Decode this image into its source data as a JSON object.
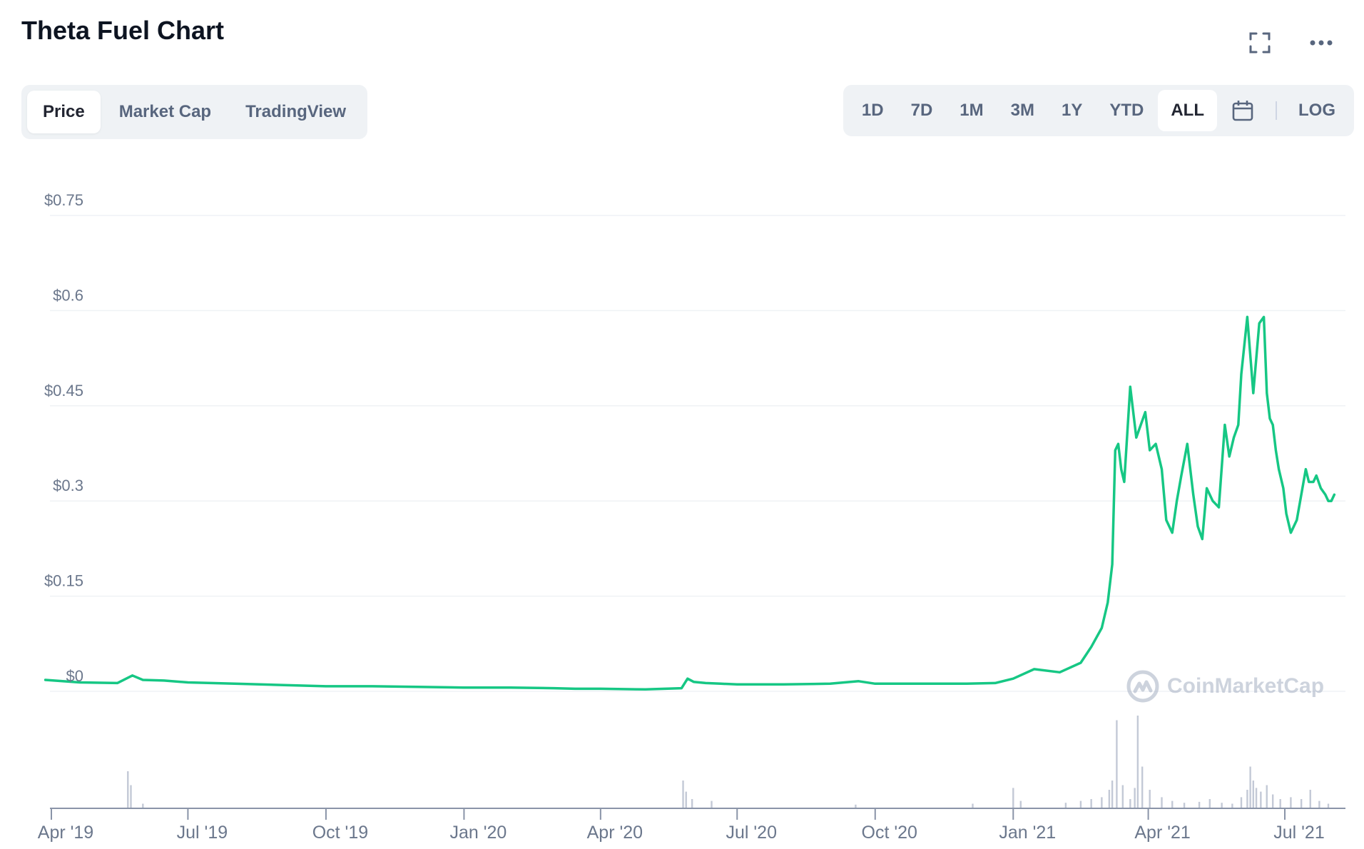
{
  "header": {
    "title": "Theta Fuel Chart"
  },
  "tabs": [
    {
      "label": "Price",
      "active": true
    },
    {
      "label": "Market Cap",
      "active": false
    },
    {
      "label": "TradingView",
      "active": false
    }
  ],
  "ranges": [
    {
      "label": "1D"
    },
    {
      "label": "7D"
    },
    {
      "label": "1M"
    },
    {
      "label": "3M"
    },
    {
      "label": "1Y"
    },
    {
      "label": "YTD"
    },
    {
      "label": "ALL",
      "active": true
    }
  ],
  "log_label": "LOG",
  "watermark": "CoinMarketCap",
  "icons": {
    "fullscreen": "fullscreen-icon",
    "more": "more-icon",
    "calendar": "calendar-icon",
    "logo": "coinmarketcap-logo"
  },
  "colors": {
    "line": "#16c784",
    "volume": "#c3c9d6",
    "grid": "#eff2f5",
    "axis": "#8a94a8"
  },
  "chart_data": {
    "type": "line",
    "title": "Theta Fuel Chart",
    "y_tick_labels": [
      "$0",
      "$0.15",
      "$0.3",
      "$0.45",
      "$0.6",
      "$0.75"
    ],
    "y_tick_values": [
      0,
      0.15,
      0.3,
      0.45,
      0.6,
      0.75
    ],
    "ylim": [
      0,
      0.75
    ],
    "x_tick_labels": [
      "Apr '19",
      "Jul '19",
      "Oct '19",
      "Jan '20",
      "Apr '20",
      "Jul '20",
      "Oct '20",
      "Jan '21",
      "Apr '21",
      "Jul '21"
    ],
    "x_tick_dates": [
      "2019-04-01",
      "2019-07-01",
      "2019-10-01",
      "2020-01-01",
      "2020-04-01",
      "2020-07-01",
      "2020-10-01",
      "2021-01-01",
      "2021-04-01",
      "2021-07-01"
    ],
    "grid": true,
    "series": [
      {
        "x": [
          "2019-03-28",
          "2019-04-20",
          "2019-05-15",
          "2019-05-25",
          "2019-06-01",
          "2019-06-15",
          "2019-07-01",
          "2019-08-01",
          "2019-09-01",
          "2019-10-01",
          "2019-11-01",
          "2019-12-01",
          "2020-01-01",
          "2020-02-01",
          "2020-03-01",
          "2020-03-15",
          "2020-04-01",
          "2020-05-01",
          "2020-05-25",
          "2020-05-29",
          "2020-06-02",
          "2020-06-10",
          "2020-06-20",
          "2020-07-01",
          "2020-08-01",
          "2020-09-01",
          "2020-09-20",
          "2020-10-01",
          "2020-11-01",
          "2020-12-01",
          "2020-12-20",
          "2021-01-01",
          "2021-01-15",
          "2021-02-01",
          "2021-02-15",
          "2021-02-22",
          "2021-03-01",
          "2021-03-05",
          "2021-03-08",
          "2021-03-10",
          "2021-03-12",
          "2021-03-14",
          "2021-03-16",
          "2021-03-20",
          "2021-03-24",
          "2021-03-27",
          "2021-03-30",
          "2021-04-02",
          "2021-04-06",
          "2021-04-10",
          "2021-04-13",
          "2021-04-17",
          "2021-04-20",
          "2021-04-23",
          "2021-04-27",
          "2021-05-01",
          "2021-05-04",
          "2021-05-07",
          "2021-05-10",
          "2021-05-14",
          "2021-05-18",
          "2021-05-22",
          "2021-05-25",
          "2021-05-28",
          "2021-05-31",
          "2021-06-02",
          "2021-06-06",
          "2021-06-10",
          "2021-06-14",
          "2021-06-17",
          "2021-06-19",
          "2021-06-21",
          "2021-06-23",
          "2021-06-25",
          "2021-06-27",
          "2021-06-30",
          "2021-07-02",
          "2021-07-05",
          "2021-07-09",
          "2021-07-12",
          "2021-07-15",
          "2021-07-17",
          "2021-07-20",
          "2021-07-22",
          "2021-07-25",
          "2021-07-28",
          "2021-07-30",
          "2021-08-01",
          "2021-08-03"
        ],
        "y": [
          0.018,
          0.014,
          0.013,
          0.025,
          0.018,
          0.017,
          0.014,
          0.012,
          0.01,
          0.008,
          0.008,
          0.007,
          0.006,
          0.006,
          0.005,
          0.004,
          0.004,
          0.003,
          0.005,
          0.02,
          0.015,
          0.013,
          0.012,
          0.011,
          0.011,
          0.012,
          0.016,
          0.012,
          0.012,
          0.012,
          0.013,
          0.02,
          0.035,
          0.03,
          0.045,
          0.07,
          0.1,
          0.14,
          0.2,
          0.38,
          0.39,
          0.35,
          0.33,
          0.48,
          0.4,
          0.42,
          0.44,
          0.38,
          0.39,
          0.35,
          0.27,
          0.25,
          0.3,
          0.34,
          0.39,
          0.31,
          0.26,
          0.24,
          0.32,
          0.3,
          0.29,
          0.42,
          0.37,
          0.4,
          0.42,
          0.5,
          0.59,
          0.47,
          0.58,
          0.59,
          0.47,
          0.43,
          0.42,
          0.38,
          0.35,
          0.32,
          0.28,
          0.25,
          0.27,
          0.31,
          0.35,
          0.33,
          0.33,
          0.34,
          0.32,
          0.31,
          0.3,
          0.3,
          0.31
        ]
      }
    ],
    "volume": {
      "x": [
        "2019-05-22",
        "2019-05-24",
        "2019-06-01",
        "2020-05-26",
        "2020-05-28",
        "2020-06-01",
        "2020-06-14",
        "2020-09-18",
        "2020-12-05",
        "2021-01-01",
        "2021-01-06",
        "2021-02-05",
        "2021-02-15",
        "2021-02-22",
        "2021-03-01",
        "2021-03-06",
        "2021-03-08",
        "2021-03-11",
        "2021-03-15",
        "2021-03-20",
        "2021-03-23",
        "2021-03-25",
        "2021-03-28",
        "2021-04-02",
        "2021-04-10",
        "2021-04-17",
        "2021-04-25",
        "2021-05-05",
        "2021-05-12",
        "2021-05-20",
        "2021-05-27",
        "2021-06-02",
        "2021-06-06",
        "2021-06-08",
        "2021-06-10",
        "2021-06-12",
        "2021-06-15",
        "2021-06-19",
        "2021-06-23",
        "2021-06-28",
        "2021-07-05",
        "2021-07-12",
        "2021-07-18",
        "2021-07-24",
        "2021-07-30"
      ],
      "v": [
        0.4,
        0.25,
        0.05,
        0.3,
        0.18,
        0.1,
        0.08,
        0.04,
        0.05,
        0.22,
        0.08,
        0.06,
        0.08,
        0.1,
        0.12,
        0.2,
        0.3,
        0.95,
        0.25,
        0.1,
        0.22,
        1.0,
        0.45,
        0.2,
        0.12,
        0.08,
        0.06,
        0.07,
        0.1,
        0.06,
        0.05,
        0.12,
        0.2,
        0.45,
        0.3,
        0.22,
        0.18,
        0.25,
        0.15,
        0.1,
        0.12,
        0.1,
        0.2,
        0.08,
        0.05
      ]
    }
  }
}
